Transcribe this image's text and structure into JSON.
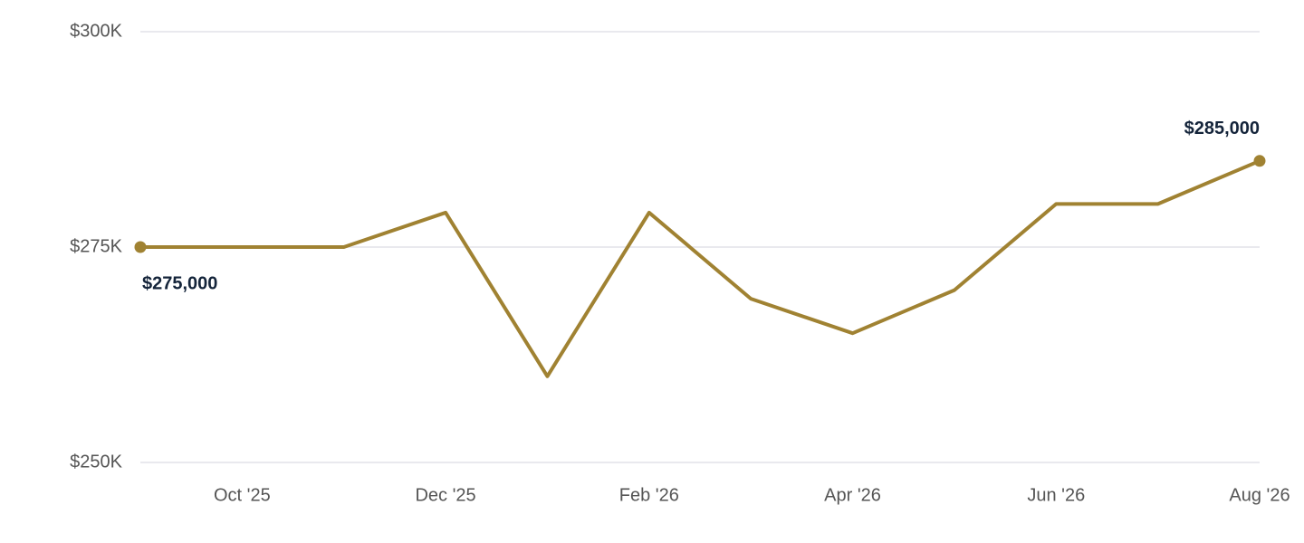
{
  "chart_data": {
    "type": "line",
    "categories": [
      null,
      "Oct '25",
      null,
      "Dec '25",
      null,
      "Feb '26",
      null,
      "Apr '26",
      null,
      "Jun '26",
      null,
      "Aug '26"
    ],
    "values": [
      275000,
      275000,
      275000,
      279000,
      260000,
      279000,
      269000,
      265000,
      270000,
      280000,
      280000,
      285000
    ],
    "value_labels": [
      "$275,000",
      null,
      null,
      null,
      null,
      null,
      null,
      null,
      null,
      null,
      null,
      "$285,000"
    ],
    "color": "#a08232",
    "ylim": [
      250000,
      300000
    ],
    "yticks": [
      {
        "value": 250000,
        "label": "$250K"
      },
      {
        "value": 275000,
        "label": "$275K"
      },
      {
        "value": 300000,
        "label": "$300K"
      }
    ],
    "grid": true
  }
}
